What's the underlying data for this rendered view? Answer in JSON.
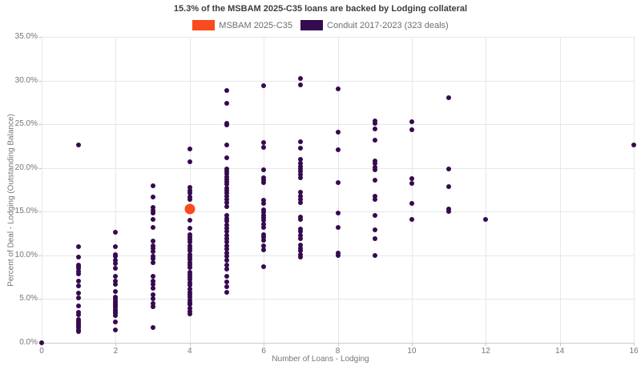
{
  "chart_data": {
    "type": "scatter",
    "title": "15.3% of the MSBAM 2025-C35 loans are backed by Lodging collateral",
    "xlabel": "Number of Loans - Lodging",
    "ylabel": "Percent of Deal - Lodging (Outstanding Balance)",
    "xlim": [
      0,
      16
    ],
    "ylim": [
      0,
      35
    ],
    "xticks": [
      0,
      2,
      4,
      6,
      8,
      10,
      12,
      14,
      16
    ],
    "yticks": [
      0,
      5,
      10,
      15,
      20,
      25,
      30,
      35
    ],
    "ytick_format": "percent1",
    "grid": true,
    "legend_position": "top-center",
    "background": "#ffffff",
    "series": [
      {
        "name": "Conduit 2017-2023 (323 deals)",
        "color": "#350A4F",
        "marker_px": 6,
        "points": [
          [
            0,
            0.0
          ],
          [
            1,
            22.6
          ],
          [
            1,
            11.0
          ],
          [
            1,
            9.8
          ],
          [
            1,
            8.9
          ],
          [
            1,
            8.7
          ],
          [
            1,
            8.5
          ],
          [
            1,
            8.2
          ],
          [
            1,
            7.9
          ],
          [
            1,
            7.1
          ],
          [
            1,
            6.5
          ],
          [
            1,
            5.7
          ],
          [
            1,
            5.1
          ],
          [
            1,
            4.2
          ],
          [
            1,
            3.5
          ],
          [
            1,
            3.2
          ],
          [
            1,
            2.7
          ],
          [
            1,
            2.5
          ],
          [
            1,
            2.3
          ],
          [
            1,
            2.1
          ],
          [
            1,
            1.9
          ],
          [
            1,
            1.7
          ],
          [
            1,
            1.5
          ],
          [
            1,
            1.3
          ],
          [
            2,
            12.6
          ],
          [
            2,
            11.0
          ],
          [
            2,
            10.1
          ],
          [
            2,
            9.9
          ],
          [
            2,
            9.4
          ],
          [
            2,
            9.1
          ],
          [
            2,
            8.5
          ],
          [
            2,
            7.6
          ],
          [
            2,
            7.1
          ],
          [
            2,
            6.7
          ],
          [
            2,
            5.9
          ],
          [
            2,
            5.2
          ],
          [
            2,
            5.0
          ],
          [
            2,
            4.8
          ],
          [
            2,
            4.6
          ],
          [
            2,
            4.4
          ],
          [
            2,
            4.2
          ],
          [
            2,
            4.0
          ],
          [
            2,
            3.8
          ],
          [
            2,
            3.6
          ],
          [
            2,
            3.4
          ],
          [
            2,
            3.1
          ],
          [
            2,
            2.4
          ],
          [
            2,
            1.5
          ],
          [
            3,
            18.0
          ],
          [
            3,
            16.7
          ],
          [
            3,
            15.5
          ],
          [
            3,
            15.1
          ],
          [
            3,
            14.8
          ],
          [
            3,
            14.1
          ],
          [
            3,
            13.2
          ],
          [
            3,
            11.6
          ],
          [
            3,
            11.1
          ],
          [
            3,
            10.8
          ],
          [
            3,
            10.4
          ],
          [
            3,
            9.9
          ],
          [
            3,
            9.6
          ],
          [
            3,
            9.2
          ],
          [
            3,
            7.6
          ],
          [
            3,
            7.1
          ],
          [
            3,
            6.7
          ],
          [
            3,
            6.2
          ],
          [
            3,
            5.5
          ],
          [
            3,
            5.0
          ],
          [
            3,
            4.5
          ],
          [
            3,
            4.1
          ],
          [
            3,
            1.7
          ],
          [
            4,
            22.2
          ],
          [
            4,
            20.7
          ],
          [
            4,
            17.8
          ],
          [
            4,
            17.4
          ],
          [
            4,
            17.1
          ],
          [
            4,
            16.7
          ],
          [
            4,
            16.4
          ],
          [
            4,
            14.0
          ],
          [
            4,
            13.1
          ],
          [
            4,
            12.4
          ],
          [
            4,
            12.1
          ],
          [
            4,
            11.8
          ],
          [
            4,
            11.5
          ],
          [
            4,
            11.1
          ],
          [
            4,
            10.8
          ],
          [
            4,
            10.5
          ],
          [
            4,
            10.1
          ],
          [
            4,
            9.8
          ],
          [
            4,
            9.5
          ],
          [
            4,
            9.2
          ],
          [
            4,
            8.9
          ],
          [
            4,
            8.6
          ],
          [
            4,
            8.1
          ],
          [
            4,
            7.8
          ],
          [
            4,
            7.5
          ],
          [
            4,
            7.2
          ],
          [
            4,
            6.9
          ],
          [
            4,
            6.6
          ],
          [
            4,
            6.1
          ],
          [
            4,
            5.8
          ],
          [
            4,
            5.5
          ],
          [
            4,
            5.2
          ],
          [
            4,
            4.9
          ],
          [
            4,
            4.6
          ],
          [
            4,
            4.4
          ],
          [
            4,
            3.9
          ],
          [
            4,
            3.6
          ],
          [
            4,
            3.3
          ],
          [
            5,
            28.9
          ],
          [
            5,
            27.4
          ],
          [
            5,
            25.1
          ],
          [
            5,
            24.9
          ],
          [
            5,
            22.6
          ],
          [
            5,
            21.2
          ],
          [
            5,
            19.9
          ],
          [
            5,
            19.6
          ],
          [
            5,
            19.3
          ],
          [
            5,
            19.0
          ],
          [
            5,
            18.7
          ],
          [
            5,
            18.4
          ],
          [
            5,
            18.1
          ],
          [
            5,
            17.7
          ],
          [
            5,
            17.4
          ],
          [
            5,
            17.1
          ],
          [
            5,
            16.8
          ],
          [
            5,
            16.4
          ],
          [
            5,
            16.0
          ],
          [
            5,
            15.6
          ],
          [
            5,
            14.6
          ],
          [
            5,
            14.2
          ],
          [
            5,
            13.9
          ],
          [
            5,
            13.5
          ],
          [
            5,
            13.1
          ],
          [
            5,
            12.7
          ],
          [
            5,
            12.3
          ],
          [
            5,
            11.9
          ],
          [
            5,
            11.5
          ],
          [
            5,
            11.1
          ],
          [
            5,
            10.7
          ],
          [
            5,
            10.3
          ],
          [
            5,
            9.9
          ],
          [
            5,
            9.4
          ],
          [
            5,
            8.9
          ],
          [
            5,
            8.4
          ],
          [
            5,
            7.6
          ],
          [
            5,
            7.0
          ],
          [
            5,
            6.4
          ],
          [
            5,
            5.8
          ],
          [
            6,
            29.4
          ],
          [
            6,
            22.9
          ],
          [
            6,
            22.4
          ],
          [
            6,
            19.8
          ],
          [
            6,
            18.9
          ],
          [
            6,
            18.6
          ],
          [
            6,
            18.3
          ],
          [
            6,
            16.3
          ],
          [
            6,
            15.9
          ],
          [
            6,
            15.2
          ],
          [
            6,
            14.9
          ],
          [
            6,
            14.6
          ],
          [
            6,
            14.3
          ],
          [
            6,
            14.0
          ],
          [
            6,
            13.6
          ],
          [
            6,
            13.2
          ],
          [
            6,
            12.4
          ],
          [
            6,
            12.1
          ],
          [
            6,
            11.7
          ],
          [
            6,
            11.1
          ],
          [
            6,
            10.6
          ],
          [
            6,
            8.7
          ],
          [
            7,
            30.2
          ],
          [
            7,
            29.5
          ],
          [
            7,
            23.0
          ],
          [
            7,
            22.3
          ],
          [
            7,
            21.0
          ],
          [
            7,
            20.5
          ],
          [
            7,
            20.2
          ],
          [
            7,
            19.9
          ],
          [
            7,
            19.6
          ],
          [
            7,
            19.2
          ],
          [
            7,
            18.9
          ],
          [
            7,
            17.2
          ],
          [
            7,
            16.8
          ],
          [
            7,
            16.4
          ],
          [
            7,
            16.0
          ],
          [
            7,
            14.4
          ],
          [
            7,
            14.1
          ],
          [
            7,
            13.0
          ],
          [
            7,
            12.7
          ],
          [
            7,
            12.3
          ],
          [
            7,
            11.9
          ],
          [
            7,
            11.2
          ],
          [
            7,
            10.8
          ],
          [
            7,
            10.5
          ],
          [
            7,
            10.1
          ],
          [
            7,
            9.8
          ],
          [
            8,
            29.0
          ],
          [
            8,
            24.1
          ],
          [
            8,
            22.1
          ],
          [
            8,
            18.3
          ],
          [
            8,
            14.8
          ],
          [
            8,
            13.2
          ],
          [
            8,
            10.3
          ],
          [
            8,
            10.0
          ],
          [
            9,
            25.4
          ],
          [
            9,
            25.1
          ],
          [
            9,
            24.5
          ],
          [
            9,
            23.2
          ],
          [
            9,
            20.8
          ],
          [
            9,
            20.5
          ],
          [
            9,
            20.1
          ],
          [
            9,
            19.8
          ],
          [
            9,
            18.6
          ],
          [
            9,
            16.8
          ],
          [
            9,
            16.4
          ],
          [
            9,
            14.6
          ],
          [
            9,
            12.9
          ],
          [
            9,
            11.9
          ],
          [
            9,
            10.0
          ],
          [
            10,
            25.3
          ],
          [
            10,
            24.4
          ],
          [
            10,
            18.8
          ],
          [
            10,
            18.2
          ],
          [
            10,
            15.9
          ],
          [
            10,
            14.1
          ],
          [
            11,
            28.0
          ],
          [
            11,
            19.9
          ],
          [
            11,
            17.9
          ],
          [
            11,
            15.3
          ],
          [
            11,
            15.0
          ],
          [
            12,
            14.1
          ],
          [
            16,
            22.6
          ]
        ]
      },
      {
        "name": "MSBAM 2025-C35",
        "color": "#FA4A1E",
        "marker_px": 13,
        "points": [
          [
            4,
            15.3
          ]
        ]
      }
    ]
  },
  "legend": {
    "msbam_label": "MSBAM 2025-C35",
    "conduit_label": "Conduit 2017-2023 (323 deals)"
  }
}
